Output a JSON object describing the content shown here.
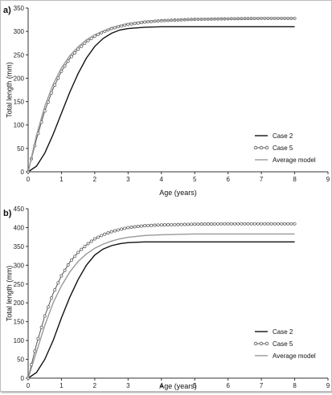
{
  "chart_data": [
    {
      "type": "line",
      "panel_label": "a)",
      "xlabel": "Age (years)",
      "ylabel": "Total length (mm)",
      "xlim": [
        0,
        9
      ],
      "ylim": [
        0,
        350
      ],
      "xticks": [
        "0",
        "1",
        "2",
        "3",
        "4",
        "5",
        "6",
        "7",
        "8",
        "9"
      ],
      "yticks": [
        "0",
        "50",
        "100",
        "150",
        "200",
        "250",
        "300",
        "350"
      ],
      "grid": false,
      "legend_position": "bottom-right",
      "series": [
        {
          "name": "Case 2",
          "color": "#111111",
          "marker": "none",
          "x": [
            0,
            0.25,
            0.5,
            0.75,
            1,
            1.25,
            1.5,
            1.75,
            2,
            2.25,
            2.5,
            2.75,
            3,
            3.5,
            4,
            5,
            6,
            7,
            8
          ],
          "y": [
            0,
            12,
            40,
            80,
            125,
            170,
            210,
            243,
            268,
            285,
            296,
            303,
            306,
            309,
            310,
            310,
            310,
            310,
            310
          ]
        },
        {
          "name": "Case 5",
          "color": "#555555",
          "marker": "circle",
          "x": [
            0,
            0.25,
            0.5,
            0.75,
            1,
            1.25,
            1.5,
            1.75,
            2,
            2.25,
            2.5,
            2.75,
            3,
            3.5,
            4,
            5,
            6,
            7,
            8
          ],
          "y": [
            0,
            70,
            130,
            178,
            215,
            242,
            262,
            278,
            290,
            299,
            306,
            311,
            315,
            320,
            323,
            326,
            327,
            328,
            328
          ]
        },
        {
          "name": "Average model",
          "color": "#999999",
          "marker": "none",
          "x": [
            0,
            0.25,
            0.5,
            0.75,
            1,
            1.25,
            1.5,
            1.75,
            2,
            2.25,
            2.5,
            2.75,
            3,
            3.5,
            4,
            5,
            6,
            7,
            8
          ],
          "y": [
            0,
            78,
            140,
            187,
            222,
            248,
            267,
            282,
            293,
            301,
            308,
            313,
            317,
            322,
            324,
            326,
            327,
            327,
            327
          ]
        }
      ]
    },
    {
      "type": "line",
      "panel_label": "b)",
      "xlabel": "Age (years)",
      "ylabel": "Total length (mm)",
      "xlim": [
        0,
        9
      ],
      "ylim": [
        0,
        450
      ],
      "xticks": [
        "0",
        "1",
        "2",
        "3",
        "4",
        "5",
        "6",
        "7",
        "8",
        "9"
      ],
      "yticks": [
        "0",
        "50",
        "100",
        "150",
        "200",
        "250",
        "300",
        "350",
        "400",
        "450"
      ],
      "grid": false,
      "legend_position": "bottom-right",
      "series": [
        {
          "name": "Case 2",
          "color": "#111111",
          "marker": "none",
          "x": [
            0,
            0.25,
            0.5,
            0.75,
            1,
            1.25,
            1.5,
            1.75,
            2,
            2.25,
            2.5,
            2.75,
            3,
            3.5,
            4,
            5,
            6,
            7,
            8
          ],
          "y": [
            0,
            15,
            50,
            100,
            160,
            215,
            262,
            300,
            327,
            343,
            352,
            357,
            360,
            362,
            362,
            362,
            362,
            362,
            362
          ]
        },
        {
          "name": "Case 5",
          "color": "#555555",
          "marker": "circle",
          "x": [
            0,
            0.25,
            0.5,
            0.75,
            1,
            1.25,
            1.5,
            1.75,
            2,
            2.25,
            2.5,
            2.75,
            3,
            3.5,
            4,
            5,
            6,
            7,
            8
          ],
          "y": [
            0,
            90,
            165,
            225,
            272,
            308,
            334,
            354,
            370,
            381,
            389,
            395,
            400,
            405,
            407,
            409,
            410,
            410,
            410
          ]
        },
        {
          "name": "Average model",
          "color": "#999999",
          "marker": "none",
          "x": [
            0,
            0.25,
            0.5,
            0.75,
            1,
            1.25,
            1.5,
            1.75,
            2,
            2.25,
            2.5,
            2.75,
            3,
            3.5,
            4,
            5,
            6,
            7,
            8
          ],
          "y": [
            0,
            70,
            140,
            200,
            245,
            282,
            310,
            330,
            345,
            356,
            364,
            370,
            374,
            379,
            381,
            383,
            383,
            383,
            383
          ]
        }
      ]
    }
  ]
}
